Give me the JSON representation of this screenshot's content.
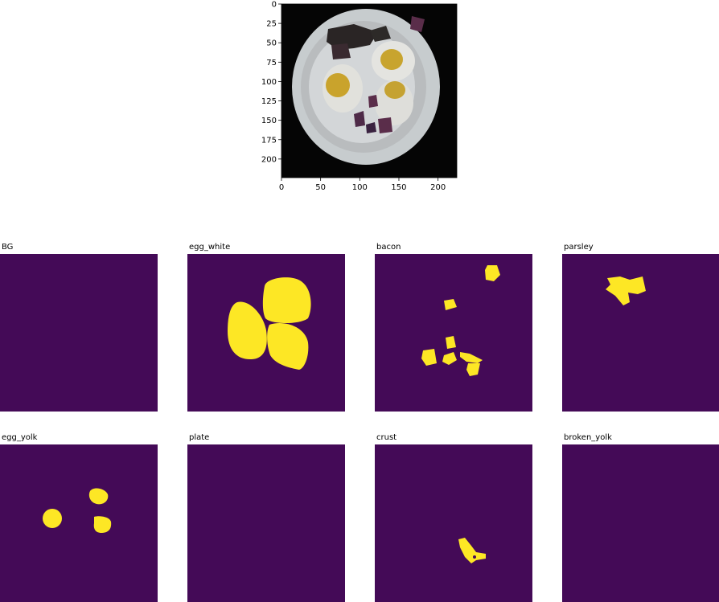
{
  "figure": {
    "photo": {
      "x_ticks": [
        "0",
        "50",
        "100",
        "150",
        "200"
      ],
      "y_ticks": [
        "0",
        "25",
        "50",
        "75",
        "100",
        "125",
        "150",
        "175",
        "200"
      ]
    },
    "colors": {
      "mask_background": "#440a57",
      "mask_foreground": "#fde725",
      "photo_background": "#050505",
      "plate": "#c9cdd0"
    },
    "masks": [
      {
        "label": "BG"
      },
      {
        "label": "egg_white"
      },
      {
        "label": "bacon"
      },
      {
        "label": "parsley"
      },
      {
        "label": "egg_yolk"
      },
      {
        "label": "plate"
      },
      {
        "label": "crust"
      },
      {
        "label": "broken_yolk"
      }
    ]
  }
}
